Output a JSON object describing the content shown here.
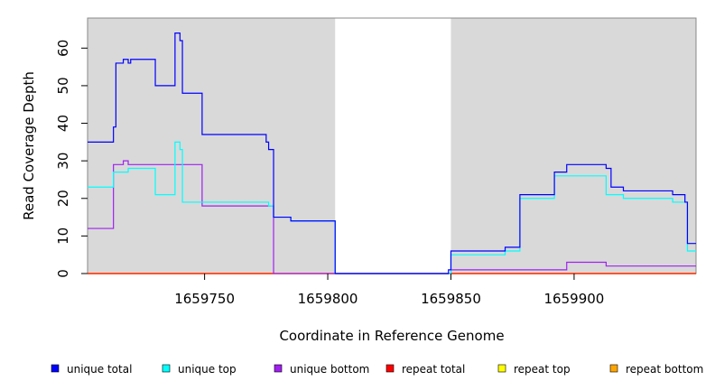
{
  "chart_data": {
    "type": "line",
    "title": "",
    "xlabel": "Coordinate in Reference Genome",
    "ylabel": "Read Coverage Depth",
    "xlim": [
      1659702.5,
      1659949.5
    ],
    "ylim": [
      0,
      68
    ],
    "xticks": [
      1659750,
      1659800,
      1659850,
      1659900
    ],
    "yticks": [
      0,
      10,
      20,
      30,
      40,
      50,
      60
    ],
    "shaded_regions": [
      {
        "from": 1659702.5,
        "to": 1659803,
        "color": "#d9d9d9"
      },
      {
        "from": 1659850,
        "to": 1659949.5,
        "color": "#d9d9d9"
      }
    ],
    "legend_position": "bottom",
    "series": [
      {
        "name": "unique total",
        "color": "#0000ff",
        "steps": [
          [
            1659702.5,
            35
          ],
          [
            1659713,
            39
          ],
          [
            1659714,
            56
          ],
          [
            1659717,
            57
          ],
          [
            1659719,
            56
          ],
          [
            1659720,
            57
          ],
          [
            1659730,
            50
          ],
          [
            1659738,
            64
          ],
          [
            1659740,
            62
          ],
          [
            1659741,
            48
          ],
          [
            1659749,
            37
          ],
          [
            1659775,
            35
          ],
          [
            1659776,
            33
          ],
          [
            1659778,
            15
          ],
          [
            1659785,
            14
          ],
          [
            1659803,
            0
          ],
          [
            1659849,
            1
          ],
          [
            1659850,
            6
          ],
          [
            1659872,
            7
          ],
          [
            1659878,
            21
          ],
          [
            1659892,
            27
          ],
          [
            1659897,
            29
          ],
          [
            1659913,
            28
          ],
          [
            1659915,
            23
          ],
          [
            1659920,
            22
          ],
          [
            1659940,
            21
          ],
          [
            1659945,
            19
          ],
          [
            1659946,
            8
          ],
          [
            1659949.5,
            8
          ]
        ]
      },
      {
        "name": "unique top",
        "color": "#00ffff",
        "steps": [
          [
            1659702.5,
            23
          ],
          [
            1659713,
            27
          ],
          [
            1659719,
            28
          ],
          [
            1659730,
            21
          ],
          [
            1659738,
            35
          ],
          [
            1659740,
            33
          ],
          [
            1659741,
            19
          ],
          [
            1659749,
            19
          ],
          [
            1659776,
            18
          ],
          [
            1659778,
            15
          ],
          [
            1659785,
            14
          ],
          [
            1659803,
            0
          ],
          [
            1659850,
            5
          ],
          [
            1659872,
            6
          ],
          [
            1659878,
            20
          ],
          [
            1659892,
            26
          ],
          [
            1659913,
            21
          ],
          [
            1659920,
            20
          ],
          [
            1659940,
            19
          ],
          [
            1659945,
            19
          ],
          [
            1659946,
            6
          ],
          [
            1659949.5,
            6
          ]
        ]
      },
      {
        "name": "unique bottom",
        "color": "#a020f0",
        "steps": [
          [
            1659702.5,
            12
          ],
          [
            1659713,
            29
          ],
          [
            1659717,
            30
          ],
          [
            1659719,
            29
          ],
          [
            1659749,
            18
          ],
          [
            1659778,
            0
          ],
          [
            1659850,
            1
          ],
          [
            1659897,
            3
          ],
          [
            1659913,
            2
          ],
          [
            1659949.5,
            2
          ]
        ]
      },
      {
        "name": "repeat total",
        "color": "#ff0000",
        "steps": [
          [
            1659702.5,
            0
          ],
          [
            1659949.5,
            0
          ]
        ]
      },
      {
        "name": "repeat top",
        "color": "#ffff00",
        "steps": [
          [
            1659702.5,
            0
          ],
          [
            1659949.5,
            0
          ]
        ]
      },
      {
        "name": "repeat bottom",
        "color": "#ffa500",
        "steps": [
          [
            1659702.5,
            0
          ],
          [
            1659949.5,
            0
          ]
        ]
      }
    ]
  }
}
